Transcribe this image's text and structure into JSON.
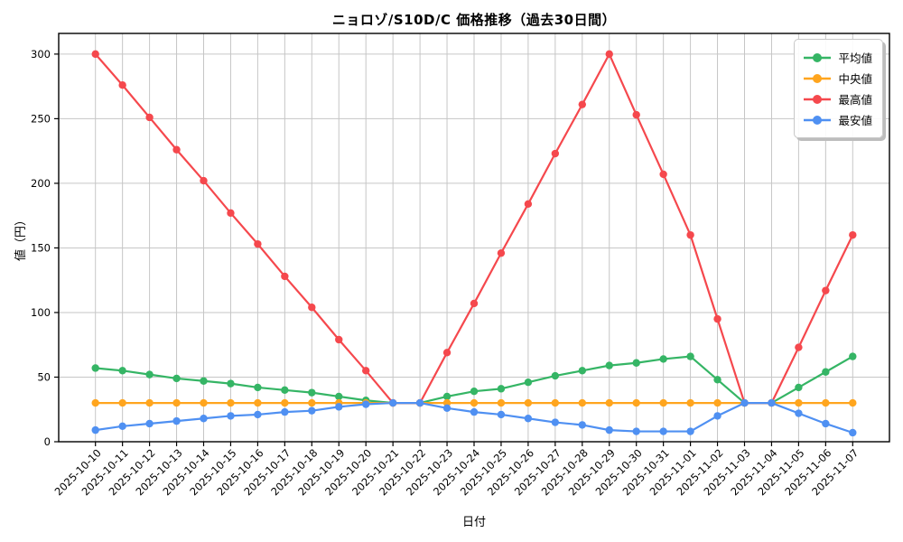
{
  "chart_data": {
    "type": "line",
    "title": "ニョロゾ/S10D/C 価格推移（過去30日間）",
    "xlabel": "日付",
    "ylabel": "値（円）",
    "categories": [
      "2025-10-10",
      "2025-10-11",
      "2025-10-12",
      "2025-10-13",
      "2025-10-14",
      "2025-10-15",
      "2025-10-16",
      "2025-10-17",
      "2025-10-18",
      "2025-10-19",
      "2025-10-20",
      "2025-10-21",
      "2025-10-22",
      "2025-10-23",
      "2025-10-24",
      "2025-10-25",
      "2025-10-26",
      "2025-10-27",
      "2025-10-28",
      "2025-10-29",
      "2025-10-30",
      "2025-10-31",
      "2025-11-01",
      "2025-11-02",
      "2025-11-03",
      "2025-11-04",
      "2025-11-05",
      "2025-11-06",
      "2025-11-07"
    ],
    "series": [
      {
        "name": "平均値",
        "key": "average",
        "color": "#35b565",
        "values": [
          57,
          55,
          52,
          49,
          47,
          45,
          42,
          40,
          38,
          35,
          32,
          30,
          30,
          35,
          39,
          41,
          46,
          51,
          55,
          59,
          61,
          64,
          66,
          48,
          30,
          30,
          42,
          54,
          66
        ]
      },
      {
        "name": "中央値",
        "key": "median",
        "color": "#ffa51e",
        "values": [
          30,
          30,
          30,
          30,
          30,
          30,
          30,
          30,
          30,
          30,
          30,
          30,
          30,
          30,
          30,
          30,
          30,
          30,
          30,
          30,
          30,
          30,
          30,
          30,
          30,
          30,
          30,
          30,
          30
        ]
      },
      {
        "name": "最高値",
        "key": "highest",
        "color": "#f5484d",
        "values": [
          300,
          276,
          251,
          226,
          202,
          177,
          153,
          128,
          104,
          79,
          55,
          30,
          30,
          69,
          107,
          146,
          184,
          223,
          261,
          300,
          253,
          207,
          160,
          95,
          30,
          30,
          73,
          117,
          160
        ]
      },
      {
        "name": "最安値",
        "key": "lowest",
        "color": "#4f90f2",
        "values": [
          9,
          12,
          14,
          16,
          18,
          20,
          21,
          23,
          24,
          27,
          29,
          30,
          30,
          26,
          23,
          21,
          18,
          15,
          13,
          9,
          8,
          8,
          8,
          20,
          30,
          30,
          22,
          14,
          7
        ]
      }
    ],
    "ylim": [
      0,
      316
    ],
    "yticks": [
      0,
      50,
      100,
      150,
      200,
      250,
      300
    ],
    "x_tick_rotation": 45,
    "grid": true,
    "legend_position": "upper right",
    "background": "#ffffff",
    "grid_color": "#c6c6c6"
  }
}
